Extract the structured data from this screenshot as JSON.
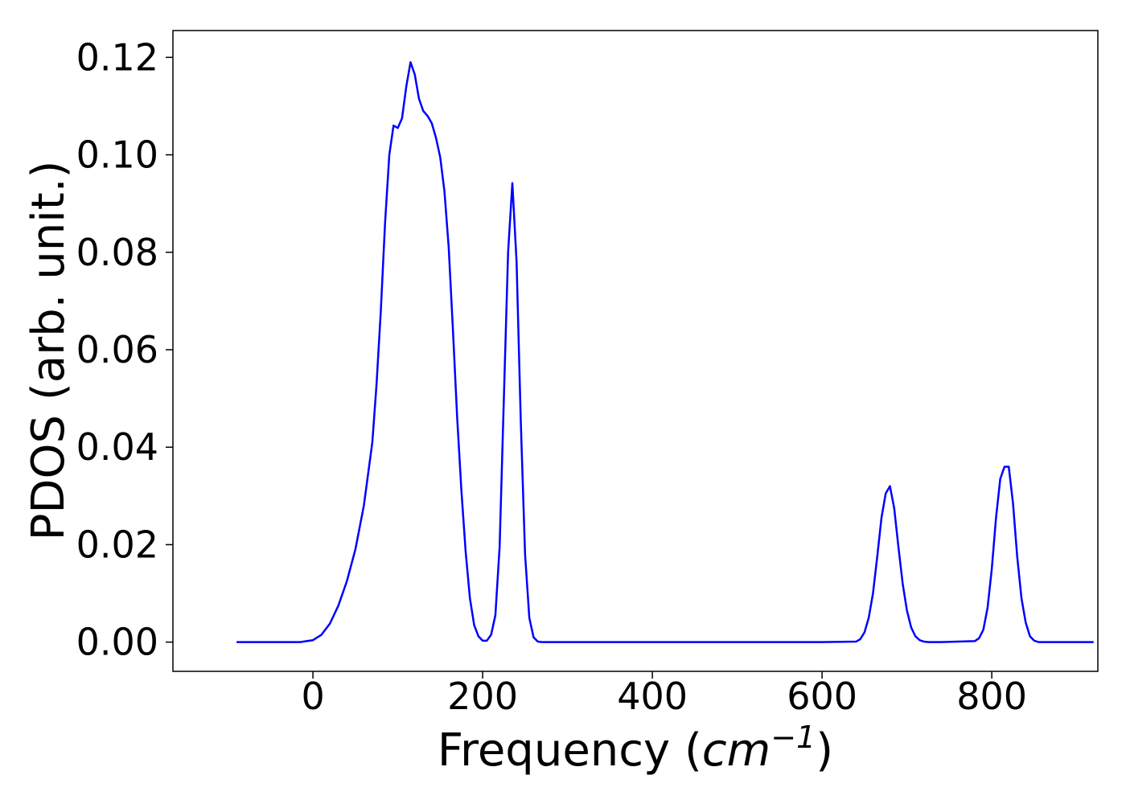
{
  "chart_data": {
    "type": "line",
    "xlabel": "Frequency",
    "xlabel_unit_open": "(",
    "xlabel_unit_base": "cm",
    "xlabel_unit_exp": "−1",
    "xlabel_unit_close": ")",
    "ylabel": "PDOS (arb. unit.)",
    "xlim": [
      -165,
      925
    ],
    "ylim": [
      -0.006,
      0.1255
    ],
    "x_ticks": [
      0,
      200,
      400,
      600,
      800
    ],
    "x_tick_labels": [
      "0",
      "200",
      "400",
      "600",
      "800"
    ],
    "y_ticks": [
      0.0,
      0.02,
      0.04,
      0.06,
      0.08,
      0.1,
      0.12
    ],
    "y_tick_labels": [
      "0.00",
      "0.02",
      "0.04",
      "0.06",
      "0.08",
      "0.10",
      "0.12"
    ],
    "grid": false,
    "legend": "none",
    "series": [
      {
        "color": "#0000ff",
        "x": [
          -90,
          -70,
          -50,
          -30,
          -15,
          0,
          10,
          20,
          30,
          40,
          50,
          60,
          70,
          75,
          80,
          85,
          90,
          95,
          100,
          105,
          110,
          115,
          120,
          125,
          130,
          135,
          140,
          145,
          150,
          155,
          160,
          165,
          170,
          175,
          180,
          185,
          190,
          195,
          200,
          205,
          210,
          215,
          220,
          225,
          230,
          235,
          240,
          245,
          250,
          255,
          260,
          265,
          270,
          275,
          280,
          300,
          400,
          500,
          600,
          640,
          645,
          650,
          655,
          660,
          665,
          670,
          675,
          680,
          685,
          690,
          695,
          700,
          705,
          710,
          715,
          720,
          725,
          730,
          740,
          780,
          785,
          790,
          795,
          800,
          805,
          810,
          815,
          820,
          825,
          830,
          835,
          840,
          845,
          850,
          855,
          860,
          870,
          920
        ],
        "values": [
          0.0,
          0.0,
          0.0,
          0.0,
          0.0,
          0.0004,
          0.0015,
          0.0038,
          0.0075,
          0.0125,
          0.019,
          0.028,
          0.041,
          0.053,
          0.068,
          0.086,
          0.1,
          0.106,
          0.1055,
          0.1075,
          0.114,
          0.119,
          0.1165,
          0.1115,
          0.109,
          0.108,
          0.1065,
          0.1035,
          0.0995,
          0.0925,
          0.081,
          0.064,
          0.046,
          0.031,
          0.0185,
          0.009,
          0.0035,
          0.0012,
          0.0003,
          0.0003,
          0.0015,
          0.0055,
          0.0195,
          0.05,
          0.08,
          0.0942,
          0.078,
          0.045,
          0.018,
          0.005,
          0.001,
          0.0001,
          0.0,
          0.0,
          0.0,
          0.0,
          0.0,
          0.0,
          0.0,
          0.0001,
          0.0006,
          0.002,
          0.005,
          0.01,
          0.0175,
          0.0255,
          0.0305,
          0.032,
          0.0275,
          0.0195,
          0.012,
          0.0065,
          0.003,
          0.0012,
          0.0004,
          0.0001,
          0.0,
          0.0,
          0.0,
          0.0002,
          0.0008,
          0.0025,
          0.007,
          0.015,
          0.0255,
          0.0335,
          0.036,
          0.036,
          0.0285,
          0.0175,
          0.009,
          0.004,
          0.0012,
          0.0003,
          0.0,
          0.0,
          0.0,
          0.0
        ]
      }
    ]
  }
}
